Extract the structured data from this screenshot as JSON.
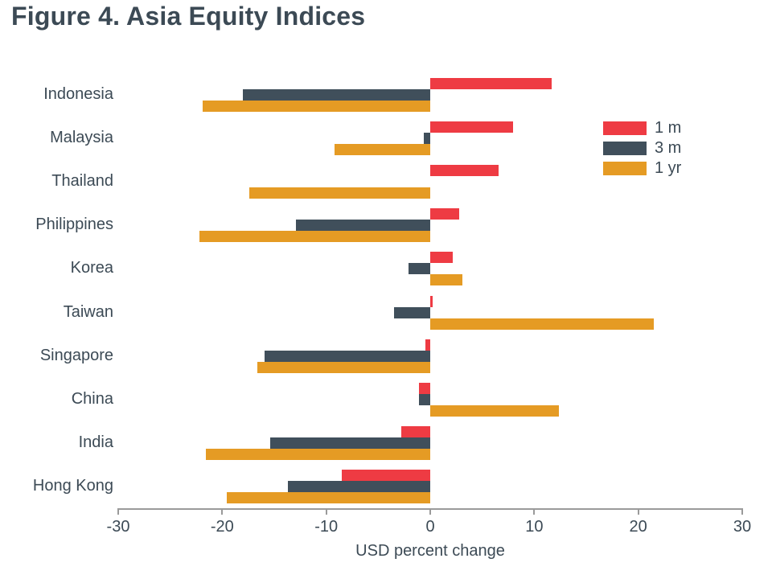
{
  "title": "Figure 4. Asia Equity Indices",
  "colors": {
    "series_1m": "#EE3B43",
    "series_3m": "#404F5B",
    "series_1yr": "#E59B24",
    "text": "#3C4A55",
    "axis": "#9A9A9A",
    "background": "#FFFFFF"
  },
  "chart_data": {
    "type": "bar",
    "orientation": "horizontal",
    "title": "Figure 4. Asia Equity Indices",
    "xlabel": "USD percent change",
    "ylabel": "",
    "xlim": [
      -30,
      30
    ],
    "xticks": [
      -30,
      -20,
      -10,
      0,
      10,
      20,
      30
    ],
    "grid": false,
    "legend_position": "upper right",
    "categories": [
      "Indonesia",
      "Malaysia",
      "Thailand",
      "Philippines",
      "Korea",
      "Taiwan",
      "Singapore",
      "China",
      "India",
      "Hong Kong"
    ],
    "series": [
      {
        "name": "1 m",
        "color": "#EE3B43",
        "values": [
          11.7,
          8.0,
          6.6,
          2.8,
          2.2,
          0.2,
          -0.5,
          -1.1,
          -2.8,
          -8.5
        ]
      },
      {
        "name": "3 m",
        "color": "#404F5B",
        "values": [
          -18.0,
          -0.6,
          0.0,
          -12.9,
          -2.1,
          -3.5,
          -15.9,
          -1.1,
          -15.4,
          -13.7
        ]
      },
      {
        "name": "1 yr",
        "color": "#E59B24",
        "values": [
          -21.9,
          -9.2,
          -17.4,
          -22.2,
          3.1,
          21.5,
          -16.6,
          12.4,
          -21.6,
          -19.6
        ]
      }
    ]
  }
}
